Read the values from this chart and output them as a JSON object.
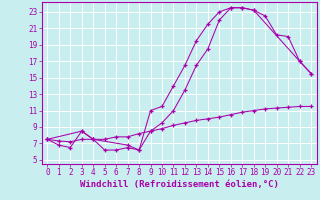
{
  "background_color": "#c8eef0",
  "grid_color": "#ffffff",
  "line_color": "#aa00aa",
  "xlabel": "Windchill (Refroidissement éolien,°C)",
  "xlabel_fontsize": 6.5,
  "tick_fontsize": 5.5,
  "xlim": [
    -0.5,
    23.5
  ],
  "ylim": [
    4.5,
    24.2
  ],
  "xticks": [
    0,
    1,
    2,
    3,
    4,
    5,
    6,
    7,
    8,
    9,
    10,
    11,
    12,
    13,
    14,
    15,
    16,
    17,
    18,
    19,
    20,
    21,
    22,
    23
  ],
  "yticks": [
    5,
    7,
    9,
    11,
    13,
    15,
    17,
    19,
    21,
    23
  ],
  "curve1_x": [
    0,
    1,
    2,
    3,
    4,
    5,
    6,
    7,
    8,
    9,
    10,
    11,
    12,
    13,
    14,
    15,
    16,
    17,
    18,
    22,
    23
  ],
  "curve1_y": [
    7.5,
    6.8,
    6.5,
    8.5,
    7.5,
    6.2,
    6.2,
    6.5,
    6.2,
    11.0,
    11.5,
    14.0,
    16.5,
    19.5,
    21.5,
    23.0,
    23.5,
    23.5,
    23.2,
    17.0,
    15.5
  ],
  "curve2_x": [
    0,
    1,
    2,
    3,
    4,
    5,
    6,
    7,
    8,
    9,
    10,
    11,
    12,
    13,
    14,
    15,
    16,
    17,
    18,
    19,
    20,
    21,
    22,
    23
  ],
  "curve2_y": [
    7.5,
    7.3,
    7.2,
    7.5,
    7.5,
    7.5,
    7.8,
    7.8,
    8.2,
    8.5,
    8.8,
    9.2,
    9.5,
    9.8,
    10.0,
    10.2,
    10.5,
    10.8,
    11.0,
    11.2,
    11.3,
    11.4,
    11.5,
    11.5
  ],
  "curve3_x": [
    0,
    3,
    4,
    7,
    8,
    9,
    10,
    11,
    12,
    13,
    14,
    15,
    16,
    17,
    18,
    19,
    20,
    21,
    22,
    23
  ],
  "curve3_y": [
    7.5,
    8.5,
    7.5,
    6.8,
    6.2,
    8.5,
    9.5,
    11.0,
    13.5,
    16.5,
    18.5,
    22.0,
    23.5,
    23.5,
    23.2,
    22.5,
    20.2,
    20.0,
    17.0,
    15.5
  ]
}
